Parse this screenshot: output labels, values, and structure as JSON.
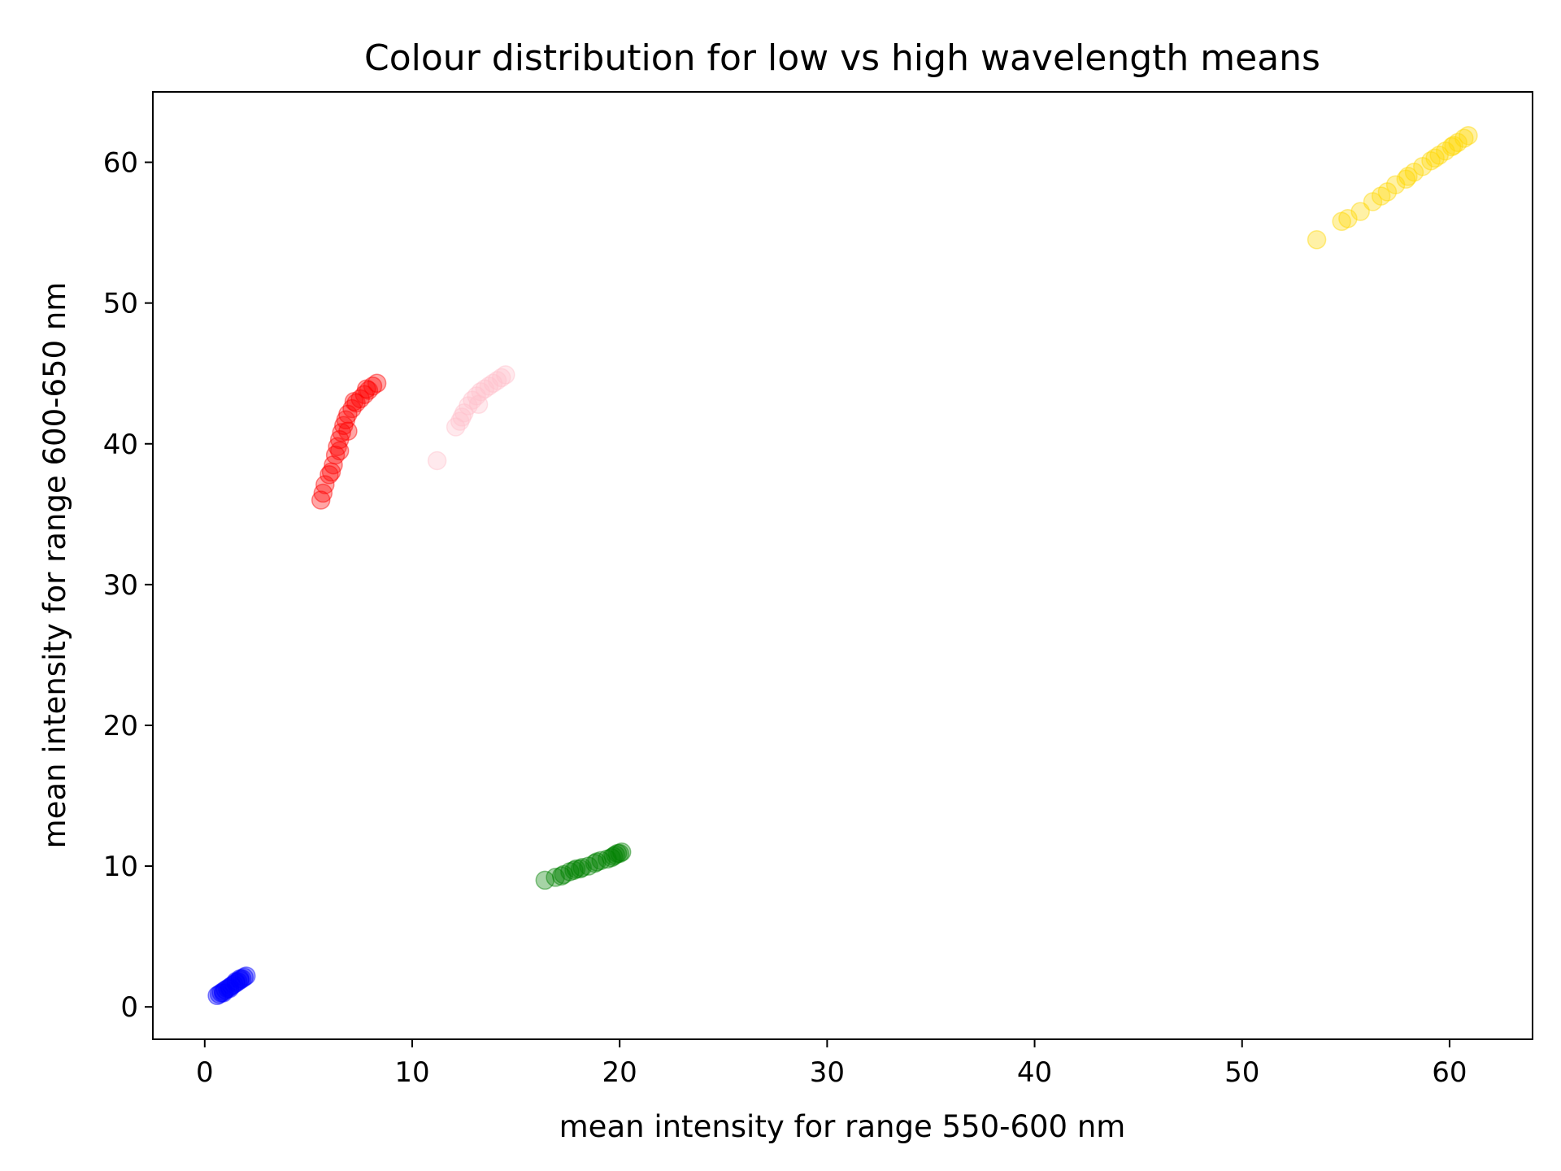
{
  "chart_data": {
    "type": "scatter",
    "title": "Colour distribution for low vs high wavelength means",
    "xlabel": "mean intensity for range 550-600 nm",
    "ylabel": "mean intensity for range 600-650 nm",
    "xlim": [
      -2.5,
      64
    ],
    "ylim": [
      -2.3,
      65
    ],
    "xticks": [
      0,
      10,
      20,
      30,
      40,
      50,
      60
    ],
    "yticks": [
      0,
      10,
      20,
      30,
      40,
      50,
      60
    ],
    "grid": false,
    "series": [
      {
        "color": "#0000ff",
        "points": [
          [
            0.6,
            0.8
          ],
          [
            0.7,
            0.9
          ],
          [
            0.8,
            1.0
          ],
          [
            0.9,
            1.1
          ],
          [
            1.0,
            1.2
          ],
          [
            1.1,
            1.3
          ],
          [
            1.2,
            1.4
          ],
          [
            1.3,
            1.5
          ],
          [
            1.4,
            1.6
          ],
          [
            1.5,
            1.7
          ],
          [
            1.6,
            1.8
          ],
          [
            1.7,
            1.9
          ],
          [
            1.8,
            2.0
          ],
          [
            1.9,
            2.1
          ],
          [
            2.0,
            2.2
          ],
          [
            0.9,
            1.0
          ],
          [
            1.2,
            1.3
          ],
          [
            1.5,
            1.8
          ],
          [
            1.7,
            2.0
          ]
        ]
      },
      {
        "color": "#008000",
        "points": [
          [
            16.4,
            9.0
          ],
          [
            16.9,
            9.2
          ],
          [
            17.3,
            9.4
          ],
          [
            17.6,
            9.6
          ],
          [
            17.9,
            9.8
          ],
          [
            18.2,
            9.9
          ],
          [
            18.5,
            10.0
          ],
          [
            18.8,
            10.2
          ],
          [
            19.1,
            10.4
          ],
          [
            19.4,
            10.5
          ],
          [
            19.6,
            10.6
          ],
          [
            19.8,
            10.8
          ],
          [
            20.0,
            10.9
          ],
          [
            20.1,
            11.0
          ],
          [
            17.8,
            9.7
          ],
          [
            18.9,
            10.3
          ],
          [
            19.7,
            10.7
          ],
          [
            19.9,
            10.9
          ],
          [
            18.1,
            9.8
          ],
          [
            17.2,
            9.3
          ]
        ]
      },
      {
        "color": "#ff0000",
        "points": [
          [
            5.6,
            36.0
          ],
          [
            5.7,
            36.5
          ],
          [
            5.8,
            37.1
          ],
          [
            6.0,
            37.8
          ],
          [
            6.2,
            38.5
          ],
          [
            6.3,
            39.2
          ],
          [
            6.4,
            39.8
          ],
          [
            6.5,
            40.3
          ],
          [
            6.6,
            40.8
          ],
          [
            6.7,
            41.3
          ],
          [
            6.8,
            41.7
          ],
          [
            6.9,
            42.1
          ],
          [
            7.1,
            42.5
          ],
          [
            7.3,
            42.9
          ],
          [
            7.5,
            43.2
          ],
          [
            7.7,
            43.5
          ],
          [
            7.9,
            43.8
          ],
          [
            8.1,
            44.1
          ],
          [
            8.3,
            44.3
          ],
          [
            6.5,
            39.5
          ],
          [
            6.9,
            40.9
          ],
          [
            7.2,
            43.0
          ],
          [
            7.8,
            43.9
          ],
          [
            6.1,
            38.0
          ]
        ]
      },
      {
        "color": "#ffc0cb",
        "points": [
          [
            11.2,
            38.8
          ],
          [
            12.1,
            41.2
          ],
          [
            12.3,
            41.6
          ],
          [
            12.5,
            42.2
          ],
          [
            12.7,
            42.7
          ],
          [
            12.9,
            43.1
          ],
          [
            13.1,
            43.4
          ],
          [
            13.3,
            43.7
          ],
          [
            13.5,
            43.9
          ],
          [
            13.7,
            44.1
          ],
          [
            13.9,
            44.3
          ],
          [
            14.1,
            44.5
          ],
          [
            14.3,
            44.7
          ],
          [
            14.5,
            44.9
          ],
          [
            13.2,
            42.8
          ],
          [
            12.4,
            41.9
          ]
        ]
      },
      {
        "color": "#ffd700",
        "points": [
          [
            53.6,
            54.5
          ],
          [
            54.8,
            55.8
          ],
          [
            55.1,
            56.0
          ],
          [
            55.7,
            56.5
          ],
          [
            56.3,
            57.2
          ],
          [
            56.7,
            57.6
          ],
          [
            57.0,
            57.9
          ],
          [
            57.4,
            58.4
          ],
          [
            57.9,
            58.8
          ],
          [
            58.3,
            59.3
          ],
          [
            58.7,
            59.7
          ],
          [
            59.1,
            60.1
          ],
          [
            59.5,
            60.5
          ],
          [
            59.8,
            60.8
          ],
          [
            60.1,
            61.1
          ],
          [
            60.4,
            61.4
          ],
          [
            60.7,
            61.7
          ],
          [
            60.9,
            61.9
          ],
          [
            58.0,
            59.0
          ],
          [
            59.3,
            60.3
          ],
          [
            60.2,
            61.2
          ]
        ]
      }
    ]
  }
}
